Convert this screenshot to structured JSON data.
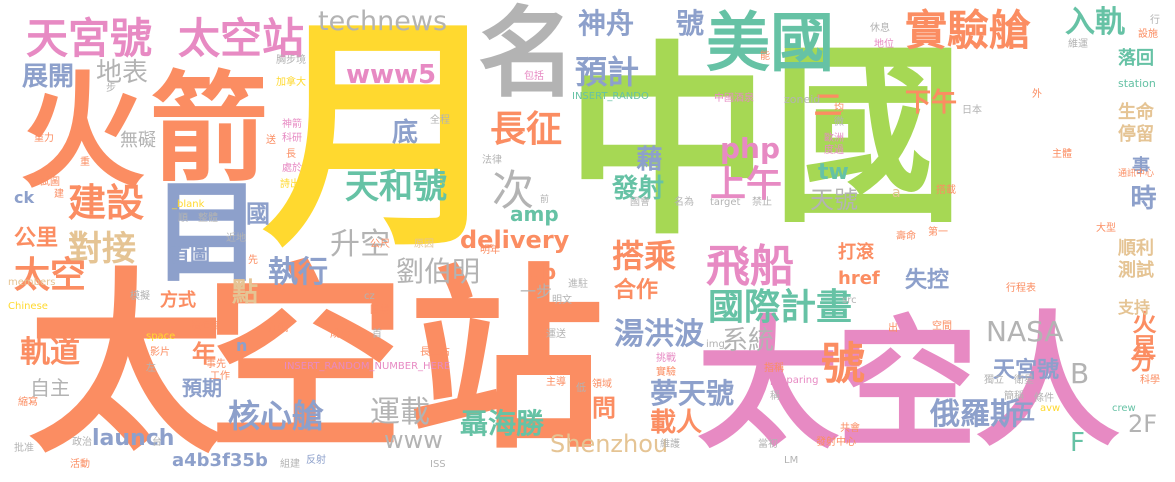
{
  "colors": {
    "orange": "#fb8d62",
    "green": "#a6d854",
    "pink": "#e78ac3",
    "blue": "#8da0cb",
    "teal": "#66c2a5",
    "yellow": "#ffd92f",
    "tan": "#e5c494",
    "gray": "#b3b3b3"
  },
  "words": {
    "tiangong_hao": "天宮號",
    "taikongzhan_top": "太空站",
    "technews": "technews",
    "shenzhou": "神舟",
    "hao": "號",
    "shiyancang": "實驗艙",
    "rugui": "入軌",
    "huo": "火",
    "jian": "箭",
    "yue": "月",
    "ming": "名",
    "meiguo": "美國",
    "zhong": "中",
    "guo": "國",
    "tai": "太",
    "kong": "空",
    "zhan": "站",
    "ren": "人",
    "www5": "www5",
    "yuji": "預計",
    "zhankai": "展開",
    "dibiao": "地表",
    "jianshe": "建設",
    "duijie": "對接",
    "mu": "目",
    "tianhe": "天和號",
    "ci": "次",
    "changzheng": "長征",
    "php": "php",
    "shangwu": "上午",
    "xiawu": "下午",
    "feichuan": "飛船",
    "guojijihua": "國際計畫",
    "taikong_left": "太空",
    "gongli": "公里",
    "shoutu": "首圖",
    "shengkong": "升空",
    "zhixing": "執行",
    "liuboming": "劉伯明",
    "delivery": "delivery",
    "cb": "cb",
    "dapei": "搭乘",
    "yibu": "一步",
    "hezuo": "合作",
    "tanghongbo": "湯洪波",
    "xitong": "系統",
    "nasa": "NASA",
    "eluosi": "俄羅斯",
    "tiangong_small": "天宮號",
    "huoxing": "火星",
    "fen": "分",
    "guidao": "軌道",
    "hexincang": "核心艙",
    "yunzai": "運載",
    "nian": "年",
    "zizhu": "自主",
    "yuqi": "預期",
    "niehaisheng": "聶海勝",
    "www": "www",
    "launch": "launch",
    "hash": "a4b3f35b",
    "shenzhou_en": "Shenzhou",
    "mengtian": "夢天號",
    "zairen": "載人",
    "wen": "問",
    "wu": "五",
    "f": "F",
    "twoF": "2F",
    "b": "B",
    "shi": "時",
    "shunli": "順利",
    "ceshi": "測試",
    "zhichi": "支持",
    "shengming": "生命",
    "tingliu": "停留",
    "luohui": "落回",
    "href": "href",
    "shikong": "失控",
    "dagun": "打滾",
    "tianhao": "天號",
    "amp": "amp",
    "tw": "tw",
    "jie": "藉",
    "fashe": "發射",
    "di": "底",
    "wuai": "無礙",
    "er": "二",
    "dian": "點",
    "fangshi": "方式",
    "ck": "ck",
    "guo_small": "國",
    "shi_small": "事",
    "n": "n",
    "station": "station",
    "zoneid": "zoneid",
    "insert_rando": "INSERT_RANDO",
    "insert_long": "INSERT_RANDOM_NUMBER_HERE",
    "small_1": "加拿大",
    "small_2": "神箭",
    "small_3": "科研",
    "small_4": "重力",
    "small_5": "長",
    "small_6": "處於",
    "small_7": "詩出",
    "small_8": "全程",
    "small_9": "中國酒泉",
    "small_10": "歐洲",
    "small_11": "度過",
    "small_12": "通訊中心",
    "small_13": "主體",
    "small_14": "休息",
    "small_15": "地位",
    "small_16": "維運",
    "small_17": "日本",
    "small_18": "前",
    "small_19": "法律",
    "small_20": "國會",
    "small_21": "名為",
    "small_22": "target",
    "small_23": "禁止",
    "small_24": "搭載",
    "small_25": "壽命",
    "small_26": "第一",
    "small_27": "大型",
    "small_28": "行程表",
    "small_29": "設施",
    "small_30": "明年",
    "small_31": "進駐",
    "small_32": "原因",
    "small_33": "公尺",
    "small_34": "近地",
    "small_35": "模擬",
    "small_36": "members",
    "small_37": "Chinese",
    "small_38": "space",
    "small_39": "指揮官",
    "small_40": "影片",
    "small_41": "左",
    "small_42": "事先",
    "small_43": "工作",
    "small_44": "在軌",
    "small_45": "成功",
    "small_46": "長二右",
    "small_47": "運送",
    "small_48": "挑戰",
    "small_49": "實驗",
    "small_50": "領域",
    "small_51": "低",
    "small_52": "主導",
    "small_53": "指稱",
    "small_54": "稱",
    "small_55": "獨立",
    "small_56": "衛星",
    "small_57": "簡稱",
    "small_58": "條件",
    "small_59": "科學",
    "small_60": "crew",
    "small_61": "avw",
    "small_62": "preparing",
    "small_63": "src",
    "small_64": "出",
    "small_65": "空間",
    "small_66": "共會",
    "small_67": "發射中心",
    "small_68": "當初",
    "small_69": "LM",
    "small_70": "維護",
    "small_71": "ISS",
    "small_72": "組建",
    "small_73": "反射",
    "small_74": "政治",
    "small_75": "活動",
    "small_76": "批准",
    "small_77": "縮寫",
    "small_78": "台",
    "small_79": "img",
    "small_80": "首",
    "small_81": "包括",
    "small_82": "a",
    "small_83": "cz",
    "small_84": "步",
    "small_85": "試圖",
    "small_86": "送",
    "small_87": "胸步境",
    "small_88": "均",
    "small_89": "微",
    "small_90": "明文",
    "small_91": "圖卷",
    "small_92": "外",
    "small_93": "行",
    "small_94": "_blank",
    "small_95": "順",
    "small_96": "整體",
    "small_97": "重",
    "small_98": "建",
    "small_99": "先",
    "small_100": "能"
  }
}
